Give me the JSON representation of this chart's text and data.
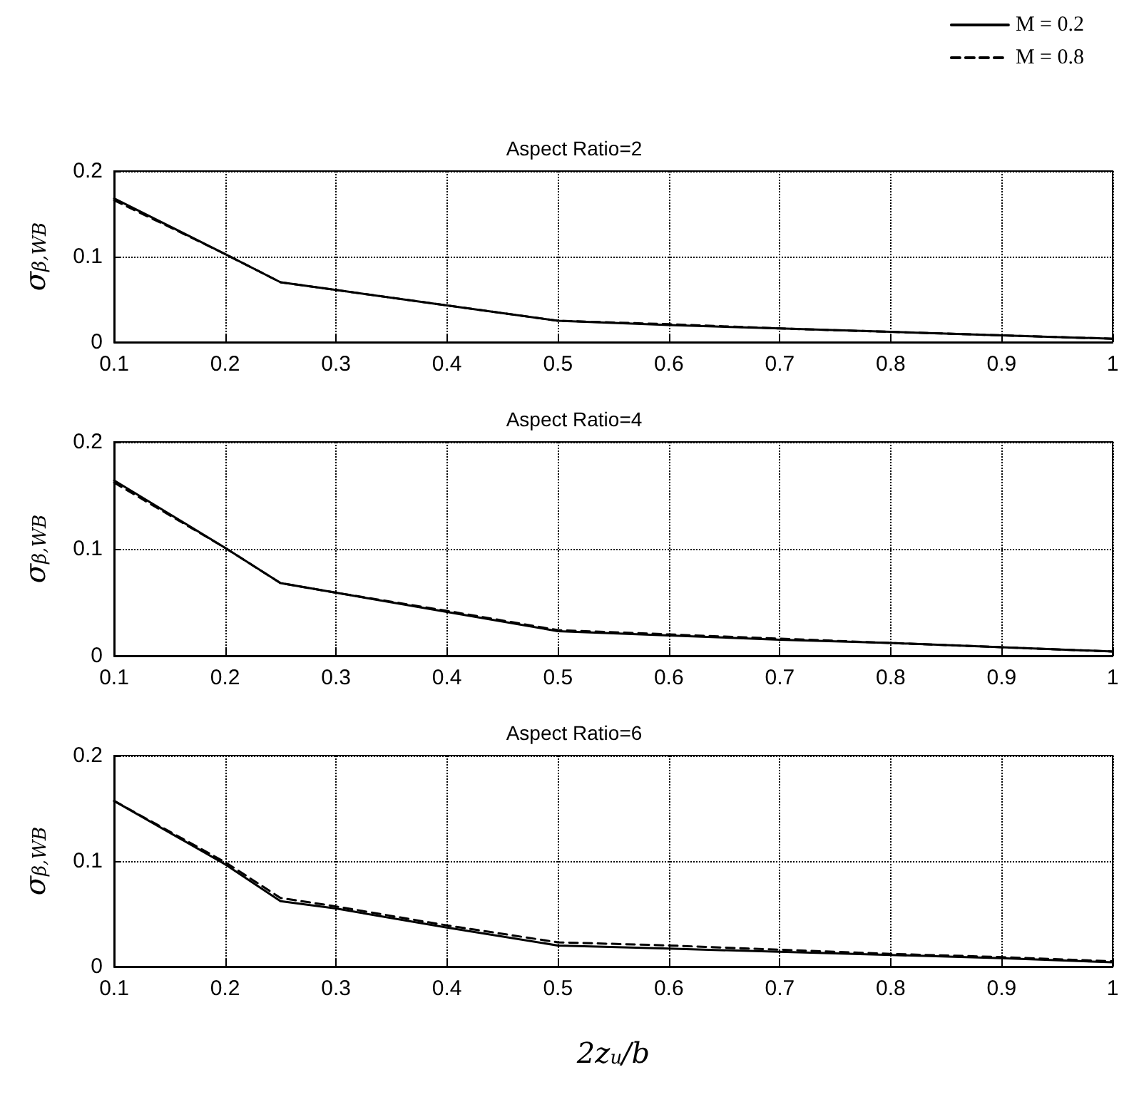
{
  "chart_data": [
    {
      "type": "line",
      "title": "Aspect Ratio=2",
      "ylabel": "σ$_{β,WB}$",
      "x": [
        0.1,
        0.2,
        0.25,
        0.3,
        0.4,
        0.5,
        0.6,
        0.7,
        0.8,
        0.9,
        1
      ],
      "series": [
        {
          "name": "M = 0.2",
          "color": "#000000",
          "line_style": "solid",
          "values": [
            0.168,
            0.103,
            0.07,
            0.061,
            0.043,
            0.025,
            0.02,
            0.016,
            0.012,
            0.008,
            0.004
          ]
        },
        {
          "name": "M = 0.8",
          "color": "#000000",
          "line_style": "dashed",
          "values": [
            0.166,
            0.103,
            0.07,
            0.061,
            0.043,
            0.025,
            0.021,
            0.016,
            0.012,
            0.008,
            0.004
          ]
        }
      ],
      "xlim": [
        0.1,
        1
      ],
      "xticks": [
        0.1,
        0.2,
        0.3,
        0.4,
        0.5,
        0.6,
        0.7,
        0.8,
        0.9,
        1
      ],
      "ylim": [
        0,
        0.2
      ],
      "yticks": [
        0,
        0.1,
        0.2
      ],
      "grid": true,
      "legend": "top right",
      "marker": "none"
    },
    {
      "type": "line",
      "title": "Aspect Ratio=4",
      "ylabel": "σ$_{β,WB}$",
      "x": [
        0.1,
        0.2,
        0.25,
        0.3,
        0.4,
        0.5,
        0.6,
        0.7,
        0.8,
        0.9,
        1
      ],
      "series": [
        {
          "color": "#000000",
          "line_style": "solid",
          "values": [
            0.164,
            0.101,
            0.068,
            0.059,
            0.041,
            0.023,
            0.019,
            0.015,
            0.012,
            0.008,
            0.004
          ]
        },
        {
          "color": "#000000",
          "line_style": "dashed",
          "values": [
            0.162,
            0.101,
            0.068,
            0.059,
            0.042,
            0.024,
            0.02,
            0.016,
            0.012,
            0.008,
            0.004
          ]
        }
      ],
      "xlim": [
        0.1,
        1
      ],
      "xticks": [
        0.1,
        0.2,
        0.3,
        0.4,
        0.5,
        0.6,
        0.7,
        0.8,
        0.9,
        1
      ],
      "ylim": [
        0,
        0.2
      ],
      "yticks": [
        0,
        0.1,
        0.2
      ],
      "grid": true,
      "marker": "none"
    },
    {
      "type": "line",
      "title": "Aspect Ratio=6",
      "ylabel": "σ$_{β,WB}$",
      "xlabel": "2z$_{u}$/b",
      "x": [
        0.1,
        0.2,
        0.25,
        0.3,
        0.4,
        0.5,
        0.6,
        0.7,
        0.8,
        0.9,
        1
      ],
      "series": [
        {
          "color": "#000000",
          "line_style": "solid",
          "values": [
            0.157,
            0.097,
            0.062,
            0.055,
            0.037,
            0.02,
            0.017,
            0.014,
            0.011,
            0.008,
            0.004
          ]
        },
        {
          "color": "#000000",
          "line_style": "dashed",
          "values": [
            0.157,
            0.099,
            0.065,
            0.057,
            0.039,
            0.023,
            0.02,
            0.016,
            0.012,
            0.009,
            0.005
          ]
        }
      ],
      "xlim": [
        0.1,
        1
      ],
      "xticks": [
        0.1,
        0.2,
        0.3,
        0.4,
        0.5,
        0.6,
        0.7,
        0.8,
        0.9,
        1
      ],
      "ylim": [
        0,
        0.2
      ],
      "yticks": [
        0,
        0.1,
        0.2
      ],
      "grid": true,
      "marker": "none"
    }
  ]
}
